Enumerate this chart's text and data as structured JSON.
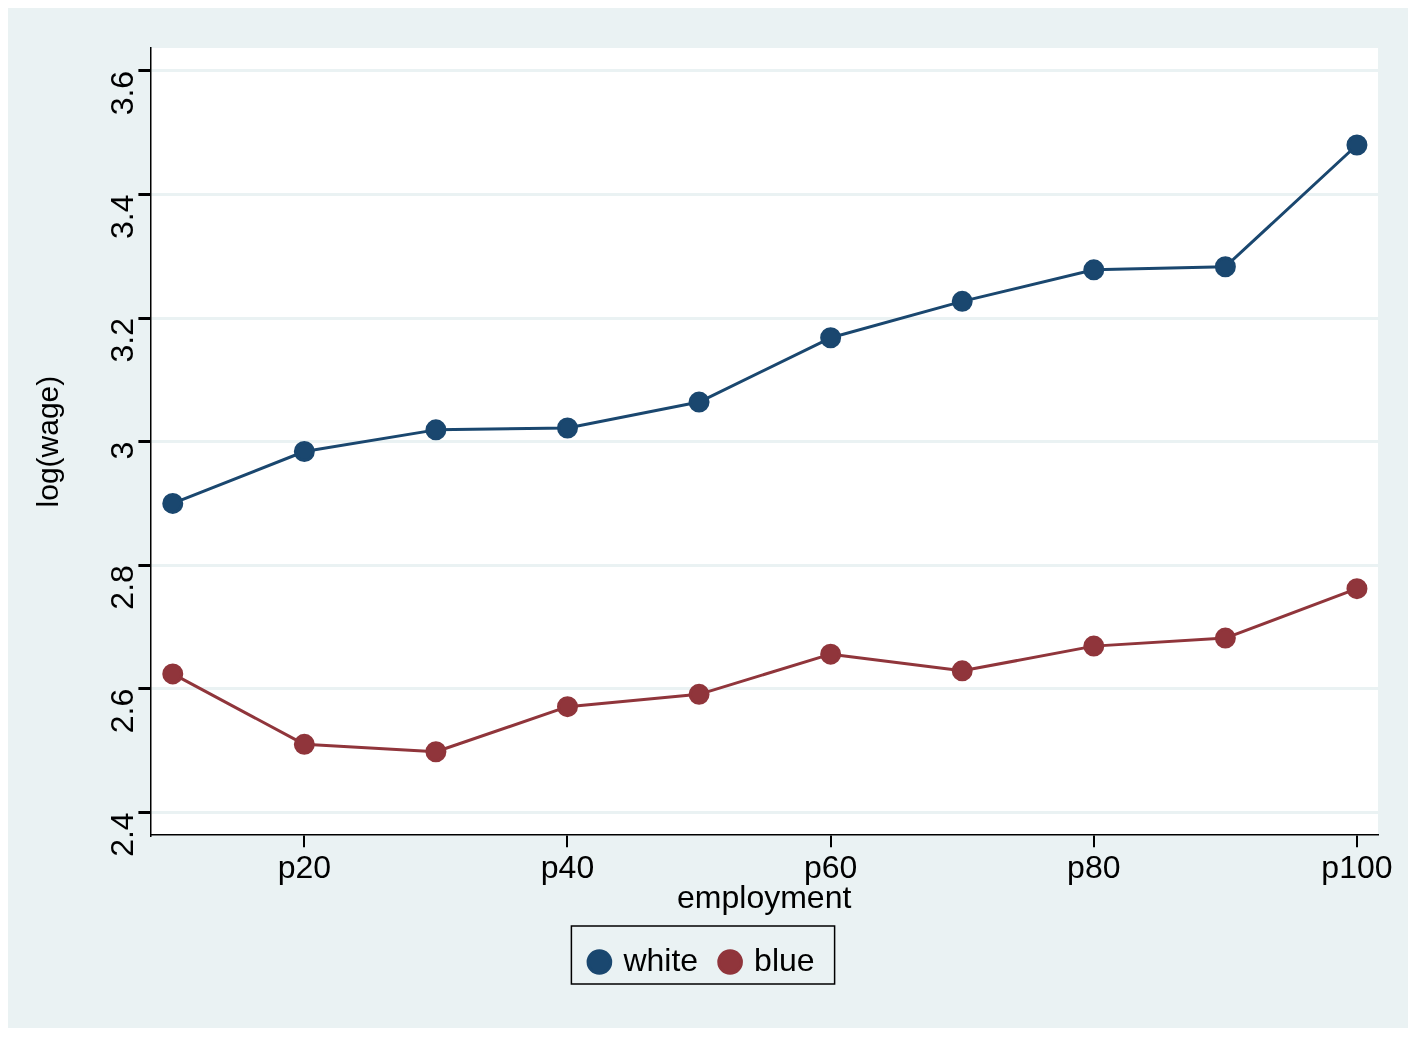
{
  "chart_data": {
    "type": "line",
    "xlabel": "employment",
    "ylabel": "log(wage)",
    "categories": [
      null,
      "p20",
      null,
      "p40",
      null,
      "p60",
      null,
      "p80",
      null,
      "p100"
    ],
    "series": [
      {
        "name": "white",
        "color": "#1a476f",
        "values": [
          2.9,
          2.984,
          3.019,
          3.022,
          3.064,
          3.168,
          3.227,
          3.278,
          3.283,
          3.48
        ]
      },
      {
        "name": "blue",
        "color": "#90353b",
        "values": [
          2.624,
          2.51,
          2.498,
          2.571,
          2.591,
          2.656,
          2.629,
          2.669,
          2.682,
          2.762
        ]
      }
    ],
    "ylim": [
      2.363,
      3.637
    ],
    "yticks": [
      {
        "value": 2.4,
        "label": "2.4"
      },
      {
        "value": 2.6,
        "label": "2.6"
      },
      {
        "value": 2.8,
        "label": "2.8"
      },
      {
        "value": 3,
        "label": "3"
      },
      {
        "value": 3.2,
        "label": "3.2"
      },
      {
        "value": 3.4,
        "label": "3.4"
      },
      {
        "value": 3.6,
        "label": "3.6"
      }
    ],
    "grid": "y",
    "legend": "bottom",
    "marker": "circle",
    "line_style": "solid"
  }
}
